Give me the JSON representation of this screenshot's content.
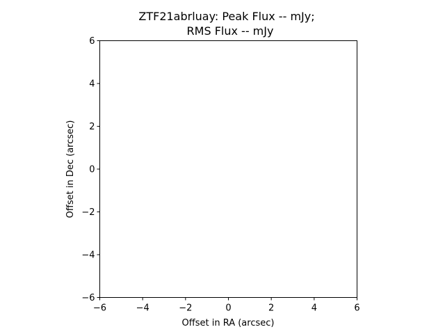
{
  "chart_data": {
    "type": "scatter",
    "title_lines": [
      "ZTF21abrluay: Peak Flux -- mJy;",
      "RMS Flux -- mJy"
    ],
    "xlabel": "Offset in RA (arcsec)",
    "ylabel": "Offset in Dec (arcsec)",
    "xlim": [
      -6,
      6
    ],
    "ylim": [
      -6,
      6
    ],
    "xticks": [
      -6,
      -4,
      -2,
      0,
      2,
      4,
      6
    ],
    "yticks": [
      -6,
      -4,
      -2,
      0,
      2,
      4,
      6
    ],
    "xtick_labels": [
      "−6",
      "−4",
      "−2",
      "0",
      "2",
      "4",
      "6"
    ],
    "ytick_labels": [
      "−6",
      "−4",
      "−2",
      "0",
      "2",
      "4",
      "6"
    ],
    "grid": false,
    "series": []
  }
}
